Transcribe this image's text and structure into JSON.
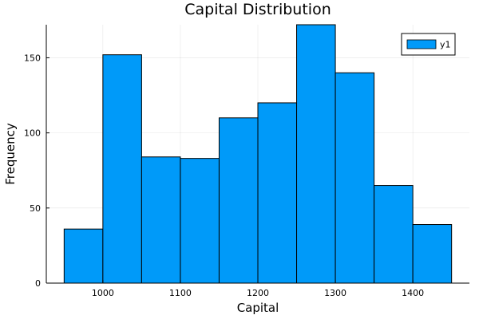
{
  "chart_data": {
    "type": "bar",
    "title": "Capital Distribution",
    "xlabel": "Capital",
    "ylabel": "Frequency",
    "bin_edges": [
      950,
      1000,
      1050,
      1100,
      1150,
      1200,
      1250,
      1300,
      1350,
      1400,
      1450
    ],
    "series": [
      {
        "name": "y1",
        "values": [
          36,
          152,
          84,
          83,
          110,
          120,
          172,
          140,
          65,
          39
        ],
        "color": "#009af9"
      }
    ],
    "xlim": [
      927,
      1473
    ],
    "ylim": [
      0,
      172
    ],
    "x_ticks": [
      1000,
      1100,
      1200,
      1300,
      1400
    ],
    "y_ticks": [
      0,
      50,
      100,
      150
    ],
    "grid": true,
    "legend_position": "top-right"
  }
}
